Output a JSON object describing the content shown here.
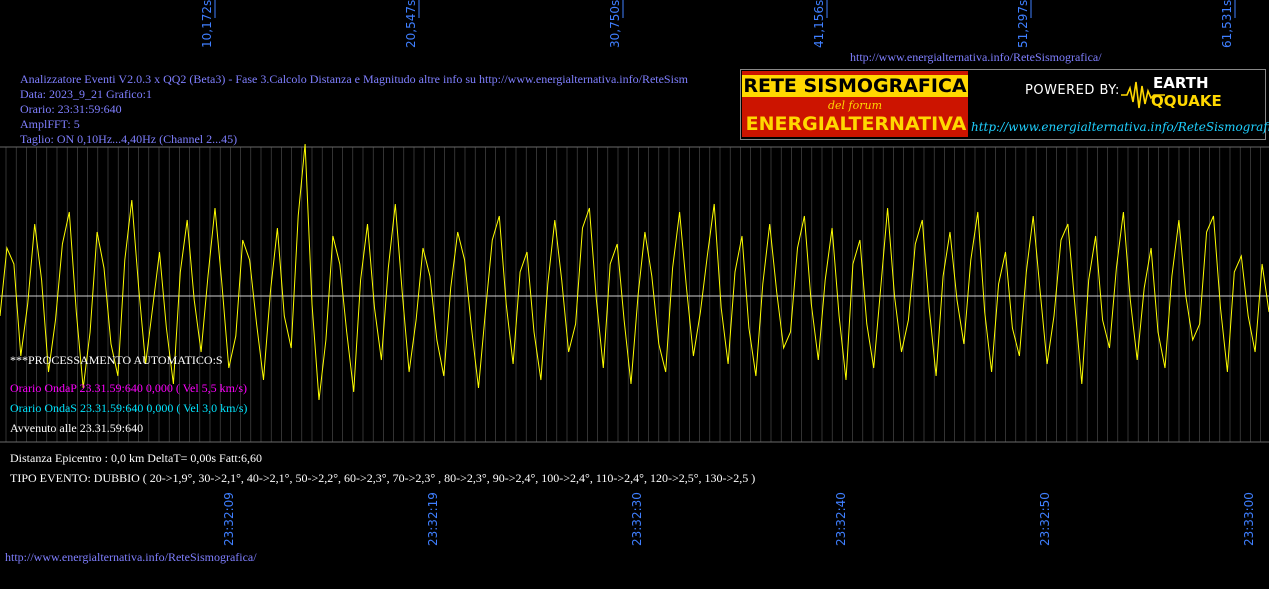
{
  "header": {
    "url_top": "http://www.energialternativa.info/ReteSismografica/",
    "url_bottom": "http://www.energialternativa.info/ReteSismografica/"
  },
  "info": {
    "line1": "Analizzatore Eventi V2.0.3 x QQ2 (Beta3) - Fase 3.Calcolo Distanza e Magnitudo altre info su http://www.energialternativa.info/ReteSism",
    "line2": "Data: 2023_9_21 Grafico:1",
    "line3": "Orario: 23:31:59:640",
    "line4": "AmplFFT: 5",
    "line5": "Taglio: ON 0,10Hz...4,40Hz       (Channel 2...45)"
  },
  "processing": {
    "title": "***PROCESSAMENTO AUTOMATICO:S",
    "onda_p": "Orario OndaP 23.31.59:640  0,000 ( Vel 5,5 km/s)",
    "onda_s": "Orario OndaS 23.31.59:640  0,000 ( Vel 3,0 km/s)",
    "avvenuto": "Avvenuto alle 23.31.59:640"
  },
  "result": {
    "distanza": "Distanza Epicentro : 0,0 km DeltaT= 0,00s  Fatt:6,60",
    "tipo": "TIPO EVENTO: DUBBIO ( 20->1,9°, 30->2,1°, 40->2,1°, 50->2,2°, 60->2,3°, 70->2,3° , 80->2,3°, 90->2,4°, 100->2,4°, 110->2,4°, 120->2,5°, 130->2,5 )"
  },
  "logo": {
    "line1": "RETE SISMOGRAFICA",
    "line2": "del forum",
    "line3": "ENERGIALTERNATIVA",
    "powered": "POWERED BY:",
    "brand1": "EARTH",
    "brand2": "QQUAKE",
    "url": "http://www.energialternativa.info/ReteSismografica"
  },
  "colors": {
    "trace": "#ffff00",
    "grid": "#555555",
    "axis_labels": "#3f7fff",
    "info_text": "#7f7fff"
  },
  "chart_data": {
    "type": "line",
    "series": [
      {
        "values": [
          -0.5,
          1.2,
          0.8,
          -1.5,
          -0.2,
          1.8,
          0.4,
          -1.9,
          -0.6,
          1.3,
          2.1,
          -0.4,
          -2.3,
          -0.9,
          1.6,
          0.7,
          -1.2,
          -2.0,
          0.9,
          2.4,
          0.2,
          -1.7,
          -0.3,
          1.1,
          -0.8,
          -2.2,
          0.6,
          1.9,
          -0.1,
          -1.4,
          0.5,
          2.2,
          0.3,
          -1.8,
          -1.0,
          1.4,
          0.9,
          -0.7,
          -2.1,
          0.1,
          1.7,
          -0.5,
          -1.3,
          2.0,
          3.8,
          -0.2,
          -2.6,
          -1.1,
          1.5,
          0.8,
          -0.9,
          -2.4,
          0.4,
          1.8,
          -0.3,
          -1.6,
          0.7,
          2.3,
          0.1,
          -1.9,
          -0.6,
          1.2,
          0.5,
          -1.1,
          -2.0,
          0.2,
          1.6,
          0.9,
          -0.8,
          -2.3,
          -0.4,
          1.4,
          2.0,
          -0.2,
          -1.7,
          0.6,
          1.1,
          -0.9,
          -2.1,
          0.3,
          1.9,
          0.4,
          -1.4,
          -0.7,
          1.7,
          2.2,
          -0.1,
          -1.8,
          0.8,
          1.3,
          -0.6,
          -2.2,
          0.0,
          1.6,
          0.5,
          -1.2,
          -1.9,
          0.7,
          2.1,
          0.2,
          -1.5,
          -0.4,
          1.0,
          2.3,
          -0.3,
          -1.7,
          0.6,
          1.5,
          -0.8,
          -2.0,
          0.3,
          1.8,
          0.1,
          -1.3,
          -0.9,
          1.2,
          2.0,
          -0.2,
          -1.6,
          0.4,
          1.7,
          -0.5,
          -2.1,
          0.8,
          1.4,
          -0.7,
          -1.8,
          0.2,
          2.2,
          0.0,
          -1.4,
          -0.6,
          1.3,
          1.9,
          -0.3,
          -2.0,
          0.5,
          1.6,
          -0.1,
          -1.2,
          0.9,
          2.1,
          -0.4,
          -1.9,
          0.3,
          1.1,
          -0.8,
          -1.5,
          0.6,
          2.0,
          0.1,
          -1.7,
          -0.5,
          1.4,
          1.8,
          -0.2,
          -2.2,
          0.4,
          1.5,
          -0.6,
          -1.3,
          0.7,
          2.1,
          -0.1,
          -1.6,
          0.2,
          1.2,
          -0.9,
          -1.8,
          0.5,
          1.9,
          0.0,
          -1.1,
          -0.7,
          1.6,
          2.0,
          -0.3,
          -1.9,
          0.6,
          1.0,
          -0.5,
          -1.4,
          0.8,
          -0.4
        ]
      }
    ],
    "x_top_labels": [
      "10,172s",
      "20,547s",
      "30,750s",
      "41,156s",
      "51,297s",
      "61,531s"
    ],
    "x_bottom_labels": [
      "23:32:09",
      "23:32:19",
      "23:32:30",
      "23:32:40",
      "23:32:50",
      "23:33:00"
    ],
    "grid": true,
    "baseline_zero": true
  }
}
